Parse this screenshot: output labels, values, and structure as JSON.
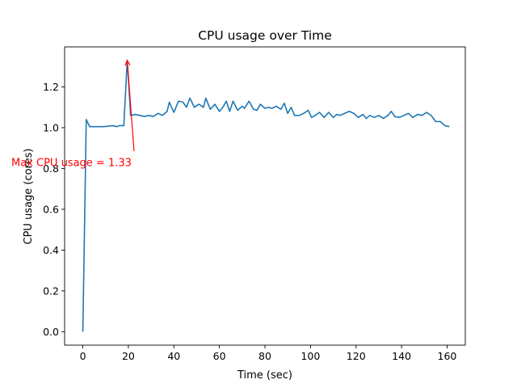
{
  "chart_data": {
    "type": "line",
    "title": "CPU usage over Time",
    "xlabel": "Time (sec)",
    "ylabel": "CPU usage (cores)",
    "xlim": [
      -8,
      168
    ],
    "ylim": [
      -0.066,
      1.396
    ],
    "xticks": [
      {
        "value": 0,
        "label": "0"
      },
      {
        "value": 20,
        "label": "20"
      },
      {
        "value": 40,
        "label": "40"
      },
      {
        "value": 60,
        "label": "60"
      },
      {
        "value": 80,
        "label": "80"
      },
      {
        "value": 100,
        "label": "100"
      },
      {
        "value": 120,
        "label": "120"
      },
      {
        "value": 140,
        "label": "140"
      },
      {
        "value": 160,
        "label": "160"
      }
    ],
    "yticks": [
      {
        "value": 0.0,
        "label": "0.0"
      },
      {
        "value": 0.2,
        "label": "0.2"
      },
      {
        "value": 0.4,
        "label": "0.4"
      },
      {
        "value": 0.6,
        "label": "0.6"
      },
      {
        "value": 0.8,
        "label": "0.8"
      },
      {
        "value": 1.0,
        "label": "1.0"
      },
      {
        "value": 1.2,
        "label": "1.2"
      }
    ],
    "grid": false,
    "series": [
      {
        "color": "#1f77b4",
        "x": [
          0,
          1.5,
          3,
          5,
          7,
          9,
          11,
          13,
          15,
          16,
          18,
          19.5,
          21,
          23,
          25,
          27,
          29,
          31,
          33,
          35,
          37,
          38,
          40,
          42,
          44,
          45.5,
          47,
          49,
          51,
          53,
          54,
          56,
          58,
          60,
          61.5,
          63,
          64.5,
          66,
          68,
          70,
          71,
          73,
          75,
          76.5,
          78,
          80,
          81.5,
          83,
          85,
          87,
          88.5,
          90,
          91.5,
          93,
          95,
          97,
          99,
          100.5,
          102,
          104,
          106,
          108,
          110,
          111.5,
          113,
          115,
          117,
          119,
          121,
          123,
          124.5,
          126,
          128,
          130,
          132,
          134,
          135.5,
          137,
          139,
          141,
          143,
          145,
          147,
          149,
          151,
          153,
          155,
          157,
          159,
          161
        ],
        "y": [
          0.0,
          1.04,
          1.005,
          1.005,
          1.005,
          1.005,
          1.007,
          1.01,
          1.005,
          1.01,
          1.01,
          1.33,
          1.06,
          1.065,
          1.06,
          1.055,
          1.06,
          1.055,
          1.07,
          1.06,
          1.08,
          1.125,
          1.075,
          1.13,
          1.125,
          1.1,
          1.145,
          1.1,
          1.115,
          1.1,
          1.145,
          1.09,
          1.115,
          1.08,
          1.1,
          1.13,
          1.08,
          1.13,
          1.085,
          1.105,
          1.095,
          1.13,
          1.09,
          1.085,
          1.115,
          1.095,
          1.1,
          1.095,
          1.105,
          1.09,
          1.12,
          1.07,
          1.1,
          1.06,
          1.06,
          1.07,
          1.085,
          1.05,
          1.06,
          1.075,
          1.05,
          1.075,
          1.05,
          1.065,
          1.06,
          1.07,
          1.08,
          1.07,
          1.05,
          1.065,
          1.045,
          1.06,
          1.05,
          1.06,
          1.045,
          1.06,
          1.08,
          1.055,
          1.05,
          1.06,
          1.07,
          1.05,
          1.065,
          1.06,
          1.075,
          1.06,
          1.03,
          1.03,
          1.01,
          1.005
        ]
      }
    ],
    "annotations": [
      {
        "text": "Max CPU usage = 1.33",
        "color": "#ff0000",
        "point": {
          "x": 19.5,
          "y": 1.33
        },
        "text_pos": {
          "x": -5,
          "y": 0.83
        },
        "arrow_tail": {
          "x": 22.5,
          "y": 0.885
        }
      }
    ]
  }
}
